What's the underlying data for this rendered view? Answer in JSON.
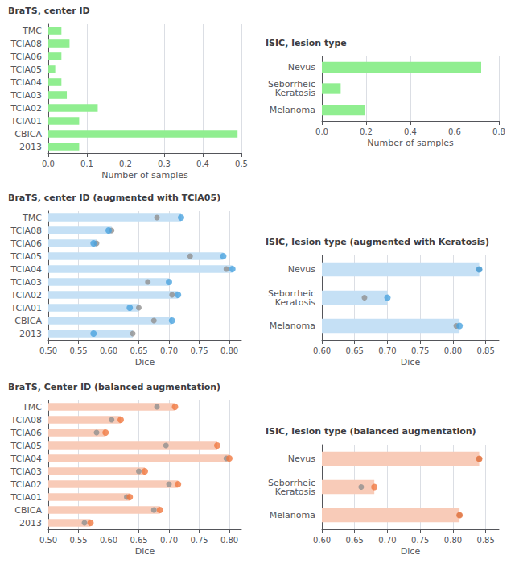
{
  "chart_data": [
    {
      "type": "bar",
      "orientation": "horizontal",
      "title": "BraTS, center ID",
      "categories": [
        "TMC",
        "TCIA08",
        "TCIA06",
        "TCIA05",
        "TCIA04",
        "TCIA03",
        "TCIA02",
        "TCIA01",
        "CBICA",
        "2013"
      ],
      "values": [
        0.034,
        0.055,
        0.034,
        0.018,
        0.034,
        0.048,
        0.128,
        0.08,
        0.49,
        0.08
      ],
      "color": "#90EE90",
      "xlabel": "Number of samples",
      "xlim": [
        0,
        0.5
      ],
      "xticks": [
        {
          "value": 0,
          "label": "0.0"
        },
        0.1,
        0.2,
        0.3,
        0.4,
        0.5
      ],
      "grid": true
    },
    {
      "type": "bar",
      "orientation": "horizontal",
      "title": "ISIC, lesion type",
      "categories": [
        "Nevus",
        "Seborrheic\nKeratosis",
        "Melanoma"
      ],
      "values": [
        0.72,
        0.085,
        0.195
      ],
      "color": "#90EE90",
      "xlabel": "Number of samples",
      "xlim": [
        0,
        0.8
      ],
      "xticks": [
        {
          "value": 0,
          "label": "0.0"
        },
        0.2,
        0.4,
        0.6,
        0.8
      ],
      "grid": true
    },
    {
      "type": "bar",
      "orientation": "horizontal",
      "title": "BraTS, center ID (augmented with TCIA05)",
      "categories": [
        "TMC",
        "TCIA08",
        "TCIA06",
        "TCIA05",
        "TCIA04",
        "TCIA03",
        "TCIA02",
        "TCIA01",
        "CBICA",
        "2013"
      ],
      "series": [
        {
          "type": "bar",
          "color": "#c5e0f5",
          "values": [
            0.72,
            0.605,
            0.58,
            0.79,
            0.805,
            0.7,
            0.715,
            0.65,
            0.705,
            0.64
          ]
        },
        {
          "type": "scatter",
          "color": "#909090",
          "values": [
            0.68,
            0.605,
            0.58,
            0.735,
            0.795,
            0.665,
            0.705,
            0.65,
            0.675,
            0.64
          ]
        },
        {
          "type": "scatter",
          "color": "#4aa3df",
          "values": [
            0.72,
            0.6,
            0.575,
            0.79,
            0.805,
            0.7,
            0.715,
            0.635,
            0.705,
            0.575
          ]
        }
      ],
      "xlabel": "Dice",
      "xlim": [
        0.5,
        0.82
      ],
      "xticks": [
        {
          "value": 0.5,
          "label": "0.50"
        },
        0.55,
        {
          "value": 0.6,
          "label": "0.60"
        },
        0.65,
        {
          "value": 0.7,
          "label": "0.70"
        },
        0.75,
        {
          "value": 0.8,
          "label": "0.80"
        }
      ],
      "grid": true
    },
    {
      "type": "bar",
      "orientation": "horizontal",
      "title": "ISIC, lesion type (augmented with Keratosis)",
      "categories": [
        "Nevus",
        "Seborrheic\nKeratosis",
        "Melanoma"
      ],
      "series": [
        {
          "type": "bar",
          "color": "#c5e0f5",
          "values": [
            0.84,
            0.7,
            0.81
          ]
        },
        {
          "type": "scatter",
          "color": "#909090",
          "values": [
            0.84,
            0.665,
            0.805
          ]
        },
        {
          "type": "scatter",
          "color": "#4aa3df",
          "values": [
            0.84,
            0.7,
            0.81
          ]
        }
      ],
      "xlabel": "Dice",
      "xlim": [
        0.6,
        0.87
      ],
      "xticks": [
        {
          "value": 0.6,
          "label": "0.60"
        },
        0.65,
        {
          "value": 0.7,
          "label": "0.70"
        },
        0.75,
        {
          "value": 0.8,
          "label": "0.80"
        },
        0.85
      ],
      "grid": true
    },
    {
      "type": "bar",
      "orientation": "horizontal",
      "title": "BraTS, Center ID (balanced augmentation)",
      "categories": [
        "TMC",
        "TCIA08",
        "TCIA06",
        "TCIA05",
        "TCIA04",
        "TCIA03",
        "TCIA02",
        "TCIA01",
        "CBICA",
        "2013"
      ],
      "series": [
        {
          "type": "bar",
          "color": "#f8cbb8",
          "values": [
            0.71,
            0.62,
            0.595,
            0.78,
            0.8,
            0.66,
            0.715,
            0.635,
            0.685,
            0.57
          ]
        },
        {
          "type": "scatter",
          "color": "#909090",
          "values": [
            0.68,
            0.605,
            0.58,
            0.695,
            0.795,
            0.65,
            0.7,
            0.63,
            0.675,
            0.56
          ]
        },
        {
          "type": "scatter",
          "color": "#f07840",
          "values": [
            0.71,
            0.62,
            0.595,
            0.78,
            0.8,
            0.66,
            0.715,
            0.635,
            0.685,
            0.57
          ]
        }
      ],
      "xlabel": "Dice",
      "xlim": [
        0.5,
        0.82
      ],
      "xticks": [
        {
          "value": 0.5,
          "label": "0.50"
        },
        0.55,
        {
          "value": 0.6,
          "label": "0.60"
        },
        0.65,
        {
          "value": 0.7,
          "label": "0.70"
        },
        0.75,
        {
          "value": 0.8,
          "label": "0.80"
        }
      ],
      "grid": true
    },
    {
      "type": "bar",
      "orientation": "horizontal",
      "title": "ISIC, lesion type (balanced augmentation)",
      "categories": [
        "Nevus",
        "Seborrheic\nKeratosis",
        "Melanoma"
      ],
      "series": [
        {
          "type": "bar",
          "color": "#f8cbb8",
          "values": [
            0.84,
            0.68,
            0.81
          ]
        },
        {
          "type": "scatter",
          "color": "#909090",
          "values": [
            0.84,
            0.66,
            0.81
          ]
        },
        {
          "type": "scatter",
          "color": "#f07840",
          "values": [
            0.84,
            0.68,
            0.81
          ]
        }
      ],
      "xlabel": "Dice",
      "xlim": [
        0.6,
        0.87
      ],
      "xticks": [
        {
          "value": 0.6,
          "label": "0.60"
        },
        0.65,
        {
          "value": 0.7,
          "label": "0.70"
        },
        0.75,
        {
          "value": 0.8,
          "label": "0.80"
        },
        0.85
      ],
      "grid": true
    }
  ]
}
